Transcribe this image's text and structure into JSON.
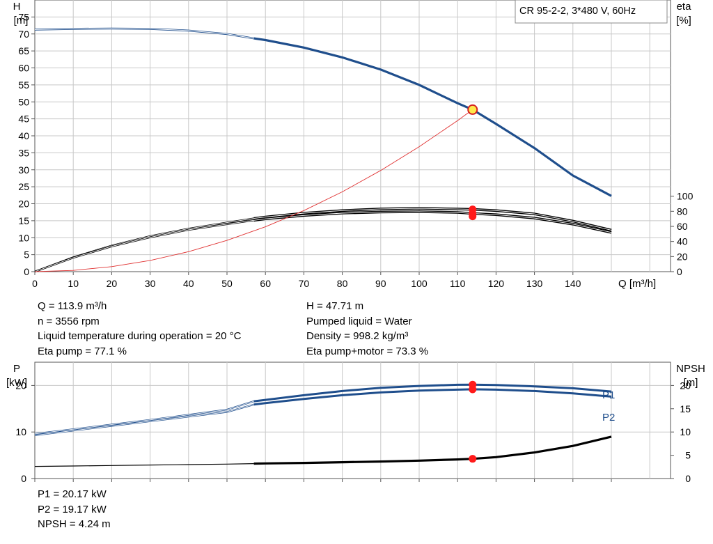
{
  "chart_data": [
    {
      "type": "line",
      "title": "CR 95-2-2, 3*480 V, 60Hz",
      "xlabel": "Q [m³/h]",
      "ylabel": "H",
      "ylabel_unit": "[m]",
      "y2label": "eta",
      "y2label_unit": "[%]",
      "xlim": [
        0,
        160
      ],
      "ylim": [
        0,
        80
      ],
      "y2lim": [
        0,
        360
      ],
      "grid": true,
      "x_ticks": [
        0,
        10,
        20,
        30,
        40,
        50,
        60,
        70,
        80,
        90,
        100,
        110,
        120,
        130,
        140
      ],
      "y_ticks": [
        0,
        5,
        10,
        15,
        20,
        25,
        30,
        35,
        40,
        45,
        50,
        55,
        60,
        65,
        70,
        75
      ],
      "y2_ticks": [
        0,
        20,
        40,
        60,
        80,
        100
      ],
      "series": [
        {
          "axis": "left",
          "color": "#1f4e8c",
          "style": "head",
          "points": [
            [
              0,
              71.3
            ],
            [
              10,
              71.5
            ],
            [
              20,
              71.6
            ],
            [
              30,
              71.5
            ],
            [
              40,
              71
            ],
            [
              50,
              70
            ],
            [
              57,
              68.7
            ],
            [
              60,
              68.2
            ],
            [
              70,
              66
            ],
            [
              80,
              63.1
            ],
            [
              90,
              59.5
            ],
            [
              100,
              55
            ],
            [
              110,
              49.6
            ],
            [
              113.9,
              47.71
            ],
            [
              120,
              43.5
            ],
            [
              130,
              36.4
            ],
            [
              140,
              28.3
            ],
            [
              150,
              22.3
            ]
          ]
        },
        {
          "axis": "right",
          "color": "#000000",
          "style": "eta",
          "points": [
            [
              0,
              0
            ],
            [
              10,
              19
            ],
            [
              20,
              34.5
            ],
            [
              30,
              47
            ],
            [
              40,
              57
            ],
            [
              50,
              65
            ],
            [
              57,
              70.5
            ],
            [
              60,
              72.5
            ],
            [
              70,
              77.5
            ],
            [
              80,
              81
            ],
            [
              90,
              83.2
            ],
            [
              100,
              84
            ],
            [
              110,
              83
            ],
            [
              113.9,
              82.5
            ],
            [
              120,
              81
            ],
            [
              130,
              76.5
            ],
            [
              140,
              67
            ],
            [
              150,
              55
            ]
          ]
        },
        {
          "axis": "right",
          "color": "#000000",
          "style": "eta",
          "points": [
            [
              0,
              0
            ],
            [
              10,
              18.5
            ],
            [
              20,
              33.5
            ],
            [
              30,
              45.5
            ],
            [
              40,
              55.5
            ],
            [
              50,
              63
            ],
            [
              57,
              68
            ],
            [
              60,
              70
            ],
            [
              70,
              74.5
            ],
            [
              80,
              77.5
            ],
            [
              90,
              79
            ],
            [
              100,
              79.5
            ],
            [
              110,
              78.5
            ],
            [
              113.9,
              77.1
            ],
            [
              120,
              75.5
            ],
            [
              130,
              71
            ],
            [
              140,
              63
            ],
            [
              150,
              52
            ]
          ]
        },
        {
          "axis": "left",
          "color": "#e03030",
          "style": "system",
          "points": [
            [
              0,
              0
            ],
            [
              10,
              0.37
            ],
            [
              20,
              1.47
            ],
            [
              30,
              3.31
            ],
            [
              40,
              5.88
            ],
            [
              50,
              9.2
            ],
            [
              60,
              13.2
            ],
            [
              70,
              18
            ],
            [
              80,
              23.5
            ],
            [
              90,
              29.8
            ],
            [
              100,
              36.8
            ],
            [
              110,
              44.5
            ],
            [
              113.9,
              47.71
            ]
          ]
        }
      ],
      "duty_point": {
        "q": 113.9,
        "h": 47.71,
        "eta_values": [
          82.5,
          77.1,
          73.3
        ]
      }
    },
    {
      "type": "line",
      "xlim": [
        0,
        160
      ],
      "ylabel": "P",
      "ylabel_unit": "[kW]",
      "y2label": "NPSH",
      "y2label_unit": "[m]",
      "ylim": [
        0,
        25
      ],
      "y2lim": [
        0,
        25
      ],
      "grid": true,
      "y_ticks": [
        0,
        10,
        20
      ],
      "y2_ticks": [
        0,
        5,
        10,
        15,
        20
      ],
      "series": [
        {
          "name": "P1",
          "axis": "left",
          "color": "#1f4e8c",
          "points": [
            [
              0,
              9.6
            ],
            [
              10,
              10.6
            ],
            [
              20,
              11.6
            ],
            [
              30,
              12.6
            ],
            [
              40,
              13.7
            ],
            [
              50,
              14.8
            ],
            [
              57,
              16.6
            ],
            [
              60,
              16.9
            ],
            [
              70,
              17.9
            ],
            [
              80,
              18.8
            ],
            [
              90,
              19.5
            ],
            [
              100,
              19.9
            ],
            [
              110,
              20.15
            ],
            [
              113.9,
              20.17
            ],
            [
              120,
              20.1
            ],
            [
              130,
              19.8
            ],
            [
              140,
              19.4
            ],
            [
              150,
              18.7
            ]
          ]
        },
        {
          "name": "P2",
          "axis": "left",
          "color": "#1f4e8c",
          "points": [
            [
              0,
              9.3
            ],
            [
              10,
              10.3
            ],
            [
              20,
              11.3
            ],
            [
              30,
              12.3
            ],
            [
              40,
              13.3
            ],
            [
              50,
              14.3
            ],
            [
              57,
              15.9
            ],
            [
              60,
              16.2
            ],
            [
              70,
              17.1
            ],
            [
              80,
              17.9
            ],
            [
              90,
              18.5
            ],
            [
              100,
              18.9
            ],
            [
              110,
              19.1
            ],
            [
              113.9,
              19.17
            ],
            [
              120,
              19.1
            ],
            [
              130,
              18.8
            ],
            [
              140,
              18.3
            ],
            [
              150,
              17.6
            ]
          ]
        },
        {
          "name": "NPSH",
          "axis": "right",
          "color": "#000000",
          "points": [
            [
              0,
              2.6
            ],
            [
              10,
              2.7
            ],
            [
              20,
              2.8
            ],
            [
              30,
              2.9
            ],
            [
              40,
              3
            ],
            [
              50,
              3.1
            ],
            [
              57,
              3.2
            ],
            [
              60,
              3.25
            ],
            [
              70,
              3.35
            ],
            [
              80,
              3.5
            ],
            [
              90,
              3.65
            ],
            [
              100,
              3.85
            ],
            [
              110,
              4.1
            ],
            [
              113.9,
              4.24
            ],
            [
              120,
              4.6
            ],
            [
              130,
              5.6
            ],
            [
              140,
              7
            ],
            [
              150,
              9
            ]
          ]
        }
      ],
      "duty_point": {
        "q": 113.9,
        "p1": 20.17,
        "p2": 19.17,
        "npsh": 4.24
      }
    }
  ],
  "info_top_left": [
    "Q = 113.9 m³/h",
    "n = 3556 rpm",
    "Liquid temperature during operation = 20 °C",
    "Eta pump = 77.1 %"
  ],
  "info_top_right": [
    "H = 47.71 m",
    "Pumped liquid = Water",
    "Density = 998.2 kg/m³",
    "Eta pump+motor = 73.3 %"
  ],
  "info_bottom": [
    "P1 = 20.17 kW",
    "P2 = 19.17 kW",
    "NPSH = 4.24 m"
  ],
  "colors": {
    "head": "#1f4e8c",
    "power": "#1f4e8c",
    "eta": "#000000",
    "system": "#e03030",
    "duty_fill": "#ffe84a",
    "marker": "#ff1a1a",
    "grid": "#c8c8c8"
  }
}
